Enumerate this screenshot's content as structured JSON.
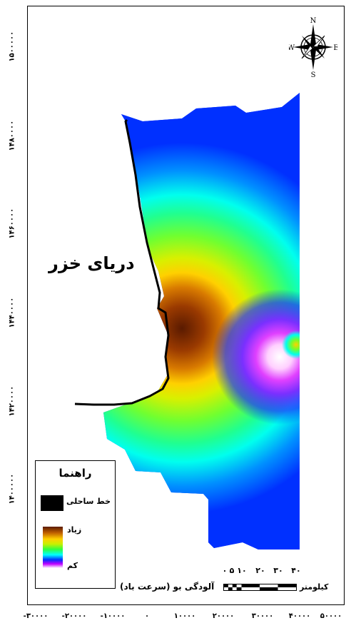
{
  "map": {
    "sea_label": "دریای خزر",
    "subtitle": "آلودگی بو (سرعت باد)"
  },
  "axes": {
    "y_ticks": [
      "۱۵۰۰۰۰۰",
      "۱۴۸۰۰۰۰",
      "۱۴۶۰۰۰۰",
      "۱۴۴۰۰۰۰",
      "۱۴۲۰۰۰۰",
      "۱۴۰۰۰۰۰"
    ],
    "x_ticks": [
      "-۳۰۰۰۰",
      "-۲۰۰۰۰",
      "-۱۰۰۰۰",
      "۰",
      "۱۰۰۰۰",
      "۲۰۰۰۰",
      "۳۰۰۰۰",
      "۴۰۰۰۰",
      "۵۰۰۰۰"
    ]
  },
  "legend": {
    "title": "راهنما",
    "coastline_label": "خط ساحلی",
    "high_label": "زیاد",
    "low_label": "کم",
    "ramp_colors": [
      "#5a1a00",
      "#c06000",
      "#ffd000",
      "#c8f000",
      "#30ff40",
      "#00ffff",
      "#0030ff",
      "#c000ff",
      "#ffffff"
    ]
  },
  "scale_bar": {
    "numbers": [
      "۰",
      "۵",
      "۱۰",
      "۲۰",
      "۳۰",
      "۴۰"
    ],
    "unit": "کیلومتر"
  },
  "north_arrow": {
    "n": "N",
    "s": "S",
    "e": "E",
    "w": "W"
  }
}
